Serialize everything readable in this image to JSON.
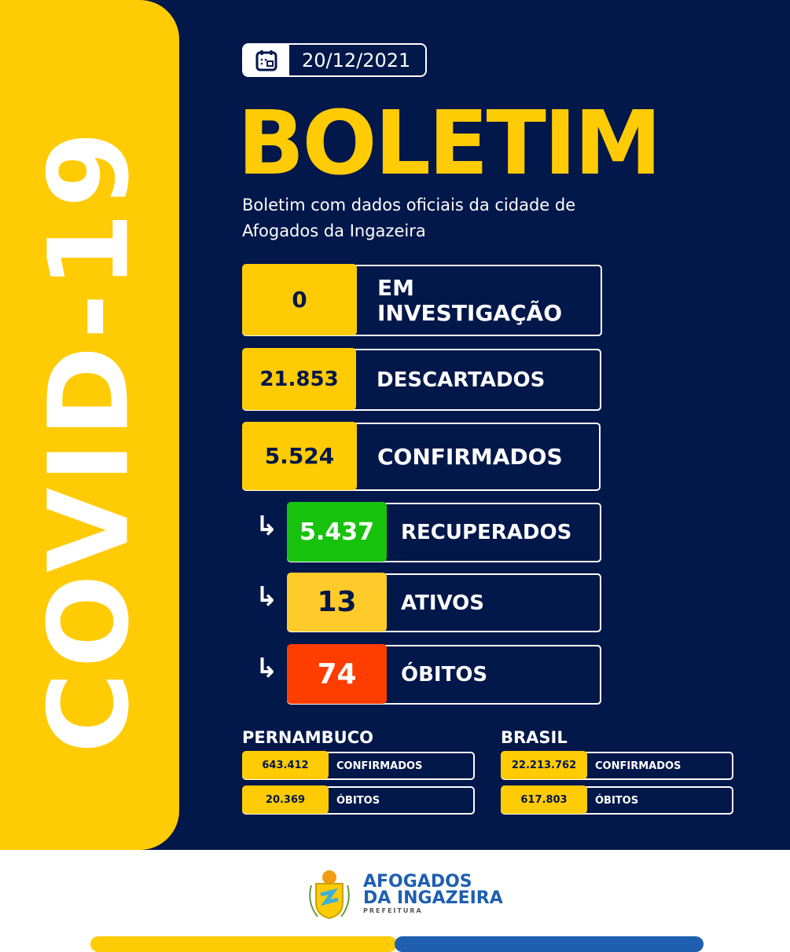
{
  "side_title": "COVID-19",
  "date": "20/12/2021",
  "title": "BOLETIM",
  "subtitle": "Boletim com dados oficiais da cidade de Afogados da Ingazeira",
  "local": [
    {
      "value": "0",
      "label": "EM INVESTIGAÇÃO",
      "color": "#ffcb05"
    },
    {
      "value": "21.853",
      "label": "DESCARTADOS",
      "color": "#ffcb05"
    },
    {
      "value": "5.524",
      "label": "CONFIRMADOS",
      "color": "#ffcb05"
    },
    {
      "value": "5.437",
      "label": "RECUPERADOS",
      "color": "#17c20d"
    },
    {
      "value": "13",
      "label": "ATIVOS",
      "color": "#ffcb2a"
    },
    {
      "value": "74",
      "label": "ÓBITOS",
      "color": "#ff3d00"
    }
  ],
  "pernambuco": {
    "title": "PERNAMBUCO",
    "rows": [
      {
        "value": "643.412",
        "label": "CONFIRMADOS"
      },
      {
        "value": "20.369",
        "label": "ÓBITOS"
      }
    ]
  },
  "brasil": {
    "title": "BRASIL",
    "rows": [
      {
        "value": "22.213.762",
        "label": "CONFIRMADOS"
      },
      {
        "value": "617.803",
        "label": "ÓBITOS"
      }
    ]
  },
  "footer": {
    "logo_line1": "AFOGADOS",
    "logo_line2": "DA INGAZEIRA",
    "logo_line3": "PREFEITURA"
  }
}
